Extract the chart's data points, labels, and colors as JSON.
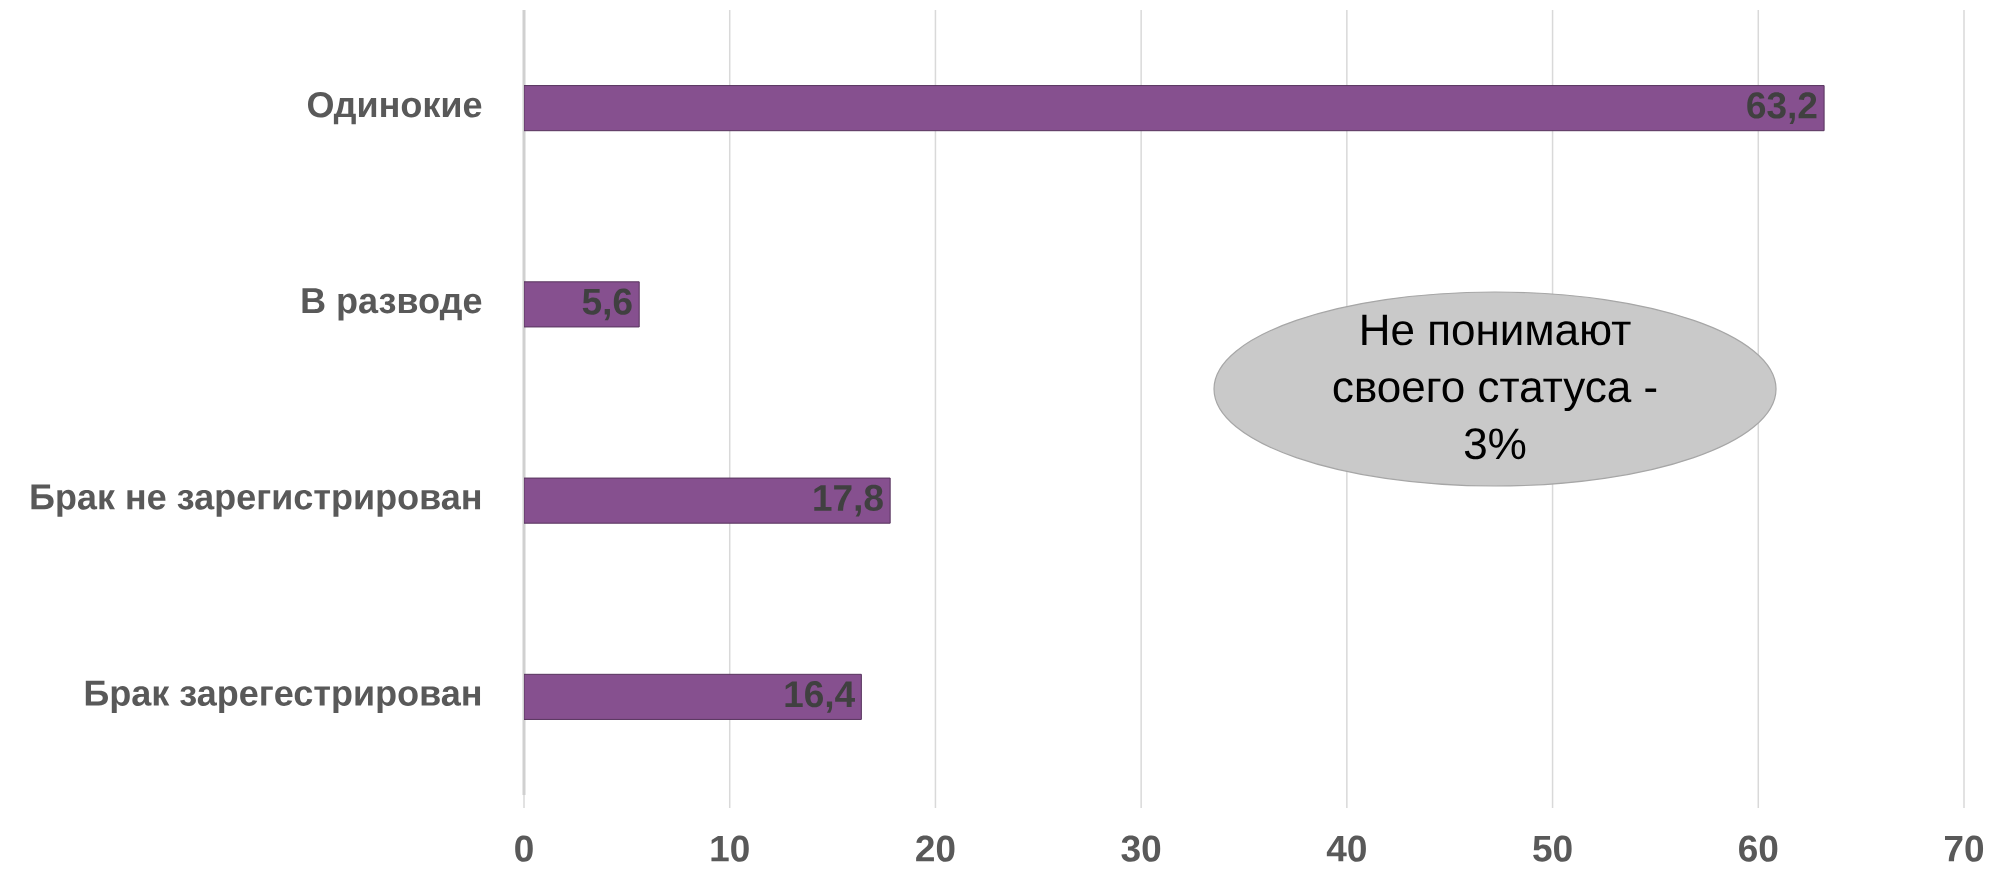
{
  "chart_data": {
    "type": "bar",
    "orientation": "horizontal",
    "categories": [
      "Одинокие",
      "В разводе",
      "Брак не зарегистрирован",
      "Брак зарегестрирован"
    ],
    "values": [
      63.2,
      5.6,
      17.8,
      16.4
    ],
    "value_labels": [
      "63,2",
      "5,6",
      "17,8",
      "16,4"
    ],
    "color": "#86508f",
    "xlim": [
      0,
      70
    ],
    "xticks": [
      0,
      10,
      20,
      30,
      40,
      50,
      60,
      70
    ],
    "grid": "x",
    "annotations": [
      "Не понимают своего статуса - 3%"
    ]
  }
}
